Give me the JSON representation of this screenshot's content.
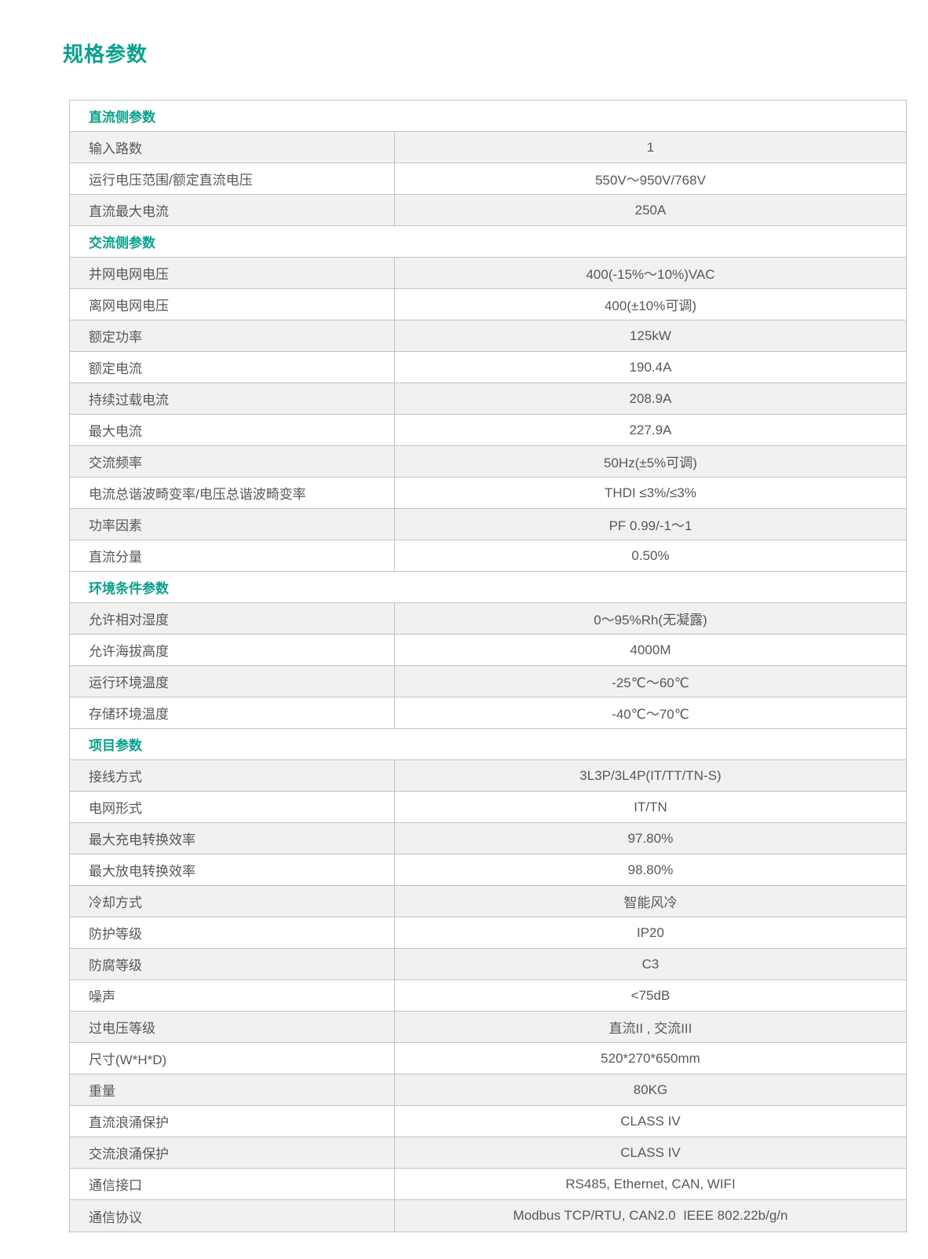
{
  "page_title": "规格参数",
  "colors": {
    "accent": "#0aa08c",
    "text": "#58585a",
    "border": "#c4c4c4",
    "shaded_row": "#f2f1ef",
    "background": "#ffffff"
  },
  "table": {
    "sections": [
      {
        "title": "直流侧参数",
        "rows": [
          {
            "label": "输入路数",
            "value": "1"
          },
          {
            "label": "运行电压范围/额定直流电压",
            "value": "550V～950V/768V"
          },
          {
            "label": "直流最大电流",
            "value": "250A"
          }
        ]
      },
      {
        "title": "交流侧参数",
        "rows": [
          {
            "label": "并网电网电压",
            "value": "400(-15%～10%)VAC"
          },
          {
            "label": "离网电网电压",
            "value": "400(±10%可调)"
          },
          {
            "label": "额定功率",
            "value": "125kW"
          },
          {
            "label": "额定电流",
            "value": "190.4A"
          },
          {
            "label": "持续过载电流",
            "value": "208.9A"
          },
          {
            "label": "最大电流",
            "value": "227.9A"
          },
          {
            "label": "交流频率",
            "value": "50Hz(±5%可调)"
          },
          {
            "label": "电流总谐波畸变率/电压总谐波畸变率",
            "value": "THDI ≤3%/≤3%"
          },
          {
            "label": "功率因素",
            "value": "PF 0.99/-1～1"
          },
          {
            "label": "直流分量",
            "value": "0.50%"
          }
        ]
      },
      {
        "title": "环境条件参数",
        "rows": [
          {
            "label": "允许相对湿度",
            "value": "0～95%Rh(无凝露)"
          },
          {
            "label": "允许海拔高度",
            "value": "4000M"
          },
          {
            "label": "运行环境温度",
            "value": "-25℃～60℃"
          },
          {
            "label": "存储环境温度",
            "value": "-40℃～70℃"
          }
        ]
      },
      {
        "title": "项目参数",
        "rows": [
          {
            "label": "接线方式",
            "value": "3L3P/3L4P(IT/TT/TN-S)"
          },
          {
            "label": "电网形式",
            "value": "IT/TN"
          },
          {
            "label": "最大充电转换效率",
            "value": "97.80%"
          },
          {
            "label": "最大放电转换效率",
            "value": "98.80%"
          },
          {
            "label": "冷却方式",
            "value": "智能风冷"
          },
          {
            "label": "防护等级",
            "value": "IP20"
          },
          {
            "label": "防腐等级",
            "value": "C3"
          },
          {
            "label": "噪声",
            "value": "<75dB"
          },
          {
            "label": "过电压等级",
            "value": "直流II , 交流III"
          },
          {
            "label": "尺寸(W*H*D)",
            "value": "520*270*650mm"
          },
          {
            "label": "重量",
            "value": "80KG"
          },
          {
            "label": "直流浪涌保护",
            "value": "CLASS IV"
          },
          {
            "label": "交流浪涌保护",
            "value": "CLASS IV"
          },
          {
            "label": "通信接口",
            "value": "RS485, Ethernet, CAN, WIFI"
          },
          {
            "label": "通信协议",
            "value": "Modbus TCP/RTU, CAN2.0  IEEE 802.22b/g/n"
          }
        ]
      }
    ]
  }
}
